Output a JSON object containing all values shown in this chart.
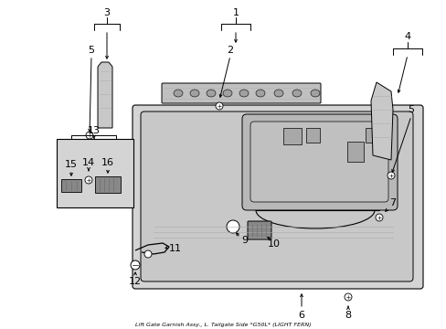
{
  "background_color": "#ffffff",
  "line_color": "#000000",
  "title": "Lift Gate Garnish Assy., L. Tailgate Side *G50L* (LIGHT FERN)",
  "panel_color": "#d8d8d8",
  "inner_color": "#cccccc",
  "part_color": "#c0c0c0"
}
